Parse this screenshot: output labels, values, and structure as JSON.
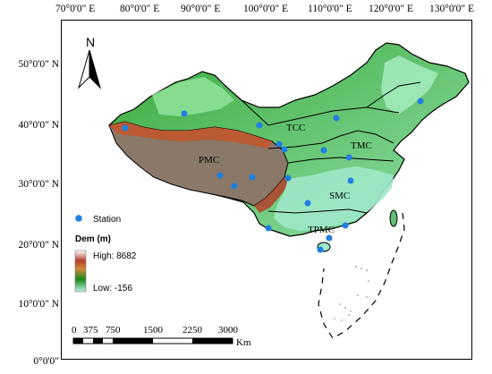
{
  "longitude_labels": [
    "70°0'0\" E",
    "80°0'0\" E",
    "90°0'0\" E",
    "100°0'0\" E",
    "110°0'0\" E",
    "120°0'0\" E",
    "130°0'0\" E"
  ],
  "latitude_labels": [
    "50°0'0\" N",
    "40°0'0\" N",
    "30°0'0\" N",
    "20°0'0\" N",
    "10°0'0\" N",
    "0°0'0\""
  ],
  "north_arrow": {
    "label": "N"
  },
  "regions": [
    "TCC",
    "TMC",
    "PMC",
    "SMC",
    "TPMC"
  ],
  "legend": {
    "station_label": "Station",
    "dem_title": "Dem (m)",
    "high_label": "High: 8682",
    "low_label": "Low: -156",
    "colors": {
      "station": "#1f7fe0",
      "dem_high": "#ffffff",
      "dem_mid": "#b4402a",
      "dem_green": "#1a8a1a",
      "dem_low": "#bff2e6"
    }
  },
  "scale_bar": {
    "ticks": [
      "0",
      "375",
      "750",
      "1500",
      "2250",
      "3000"
    ],
    "unit": "Km"
  }
}
